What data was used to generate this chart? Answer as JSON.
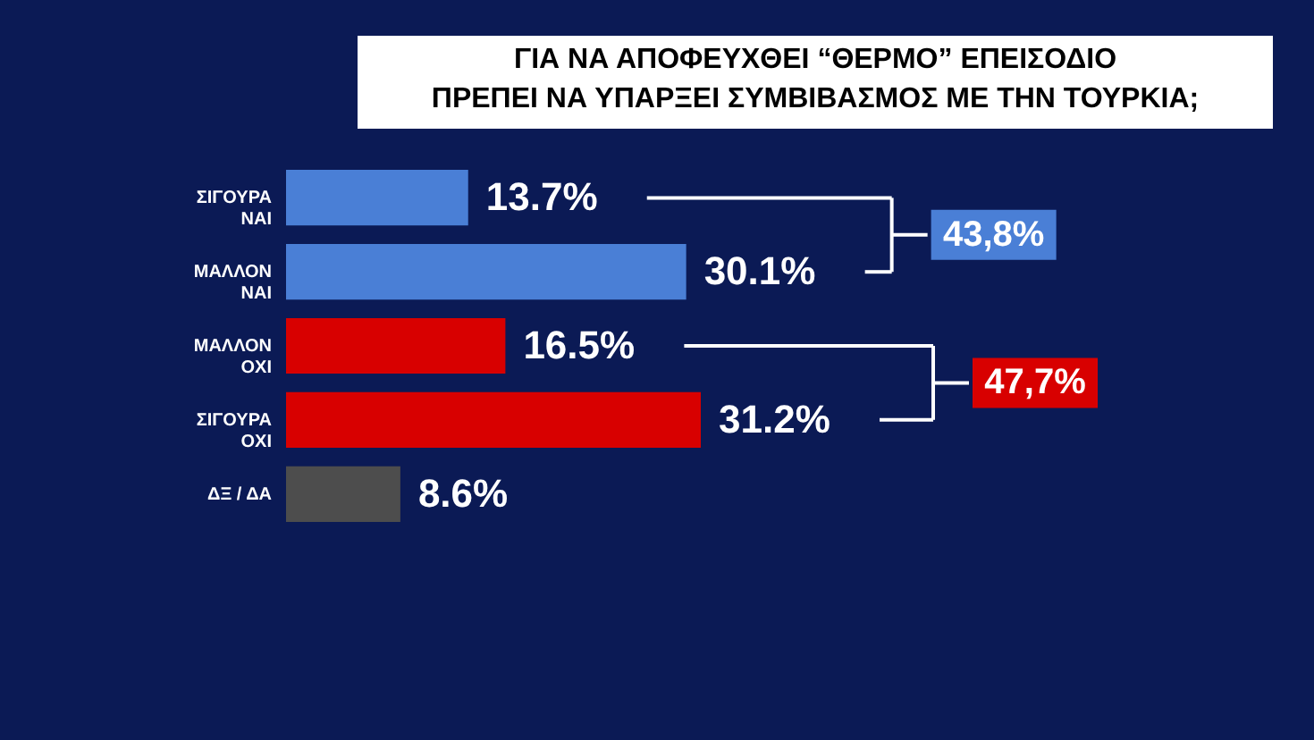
{
  "chart_data": {
    "type": "bar",
    "orientation": "horizontal",
    "title": "ΓΙΑ ΝΑ ΑΠΟΦΕΥΧΘΕΙ “ΘΕΡΜΟ” ΕΠΕΙΣΟΔΙΟ\nΠΡΕΠΕΙ ΝΑ ΥΠΑΡΞΕΙ ΣΥΜΒΙΒΑΣΜΟΣ ΜΕ ΤΗΝ ΤΟΥΡΚΙΑ;",
    "categories": [
      "ΣΙΓΟΥΡΑ\nΝΑΙ",
      "ΜΑΛΛΟΝ\nΝΑΙ",
      "ΜΑΛΛΟΝ\nΟΧΙ",
      "ΣΙΓΟΥΡΑ\nΟΧΙ",
      "ΔΞ / ΔΑ"
    ],
    "values": [
      13.7,
      30.1,
      16.5,
      31.2,
      8.6
    ],
    "colors": [
      "#4a7fd6",
      "#4a7fd6",
      "#d80000",
      "#d80000",
      "#4d4d4d"
    ],
    "value_labels": [
      "13.7%",
      "30.1%",
      "16.5%",
      "31.2%",
      "8.6%"
    ],
    "annotations": [
      "43,8%",
      "47,7%"
    ]
  }
}
